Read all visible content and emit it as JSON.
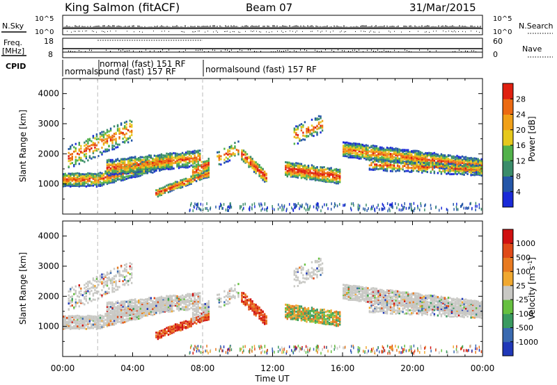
{
  "header": {
    "station": "King Salmon (fitACF)",
    "beam": "Beam 07",
    "date": "31/Mar/2015"
  },
  "strips": {
    "nsky_label": "N.Sky",
    "nsky_ticks": [
      "10^5",
      "10^0"
    ],
    "nsearch_label": "N.Search",
    "freq_label_line1": "Freq.",
    "freq_label_line2": "[MHz]",
    "freq_ticks": [
      "18",
      "8"
    ],
    "nave_label": "Nave",
    "nave_ticks": [
      "60",
      "0"
    ],
    "cpid_label": "CPID",
    "cpid_segments": [
      {
        "label": "normalsound (fast) 157 RF"
      },
      {
        "label": "normal (fast) 151 RF"
      },
      {
        "label": "normalsound (fast) 157 RF"
      }
    ]
  },
  "chart_data": [
    {
      "type": "heatmap",
      "panel": "power",
      "ylabel": "Slant Range [km]",
      "ylim": [
        0,
        4500
      ],
      "y_ticks": [
        "1000",
        "2000",
        "3000",
        "4000"
      ],
      "xlim_hours": [
        0,
        24
      ],
      "colorbar": {
        "label": "Power [dB]",
        "ticks": [
          "4",
          "8",
          "12",
          "16",
          "20",
          "24",
          "28"
        ],
        "colors": [
          "#1a2ad8",
          "#2456a8",
          "#3a8c6a",
          "#52b24a",
          "#e6c81c",
          "#f0a018",
          "#ec6a12",
          "#e02010"
        ]
      }
    },
    {
      "type": "heatmap",
      "panel": "velocity",
      "ylabel": "Slant Range [km]",
      "ylim": [
        0,
        4500
      ],
      "y_ticks": [
        "1000",
        "2000",
        "3000",
        "4000"
      ],
      "xlim_hours": [
        0,
        24
      ],
      "colorbar": {
        "label_main": "Velocity",
        "label_unit": "[m s",
        "label_sup": "-1",
        "label_close": "]",
        "ticks": [
          "1000",
          "500",
          "100",
          "25",
          "-25",
          "-100",
          "-500",
          "-1000"
        ],
        "colors": [
          "#2038b8",
          "#3a6ab0",
          "#3a9a60",
          "#66c040",
          "#c8c8c4",
          "#f0a830",
          "#e87a20",
          "#e04a18",
          "#d01010"
        ]
      }
    }
  ],
  "x_axis": {
    "ticks": [
      "00:00",
      "04:00",
      "08:00",
      "12:00",
      "16:00",
      "20:00",
      "00:00"
    ],
    "label": "Time UT"
  }
}
